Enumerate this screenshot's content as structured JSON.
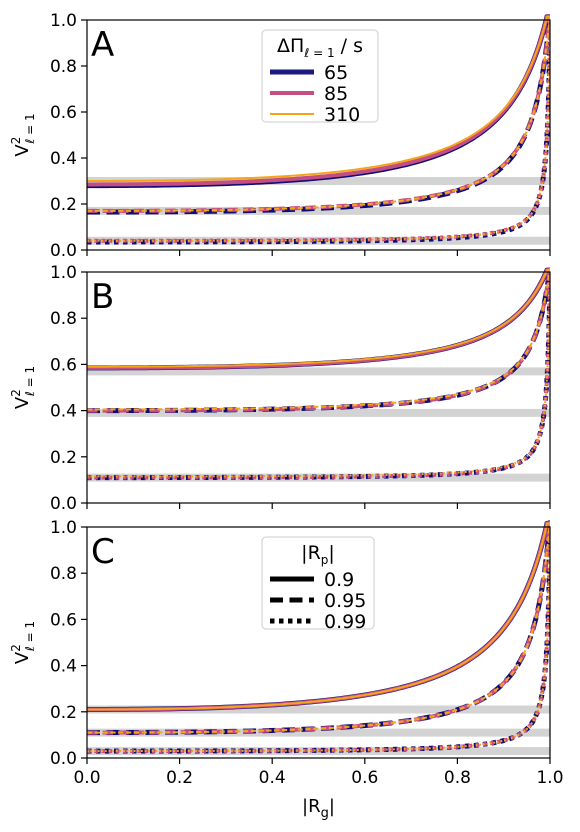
{
  "chart_data": [
    {
      "type": "line",
      "panel_label": "A",
      "ylabel_main": "V",
      "ylabel_sup": "2",
      "ylabel_sub": "ℓ = 1",
      "xlim": [
        0,
        1
      ],
      "ylim": [
        0,
        1
      ],
      "yticks": [
        "0.0",
        "0.2",
        "0.4",
        "0.6",
        "0.8",
        "1.0"
      ],
      "xticks": [
        "0.0",
        "0.2",
        "0.4",
        "0.6",
        "0.8",
        "1.0"
      ],
      "show_xtick_labels": false,
      "grey_bands": [
        0.3,
        0.17,
        0.04
      ],
      "legend": {
        "placement": "top-center",
        "title_main": "ΔΠ",
        "title_sub": "ℓ = 1",
        "title_suffix": " / s",
        "entries": [
          {
            "label": "65",
            "color": "#1a1a80",
            "width": 5
          },
          {
            "label": "85",
            "color": "#c44e80",
            "width": 4
          },
          {
            "label": "310",
            "color": "#f2a21a",
            "width": 2
          }
        ]
      },
      "series": [
        {
          "legend": "65",
          "color": "#0d0d7a",
          "width": 5,
          "dash": "solid",
          "y0": 0.28
        },
        {
          "legend": "65",
          "color": "#0d0d7a",
          "width": 5,
          "dash": "dashed",
          "y0": 0.165
        },
        {
          "legend": "65",
          "color": "#0d0d7a",
          "width": 5,
          "dash": "dotted",
          "y0": 0.035
        },
        {
          "legend": "85",
          "color": "#c44e80",
          "width": 4,
          "dash": "solid",
          "y0": 0.285
        },
        {
          "legend": "85",
          "color": "#c44e80",
          "width": 4,
          "dash": "dashed",
          "y0": 0.17
        },
        {
          "legend": "85",
          "color": "#c44e80",
          "width": 4,
          "dash": "dotted",
          "y0": 0.04
        },
        {
          "legend": "310",
          "color": "#f5a51a",
          "width": 2,
          "dash": "solid",
          "y0": 0.3
        },
        {
          "legend": "310",
          "color": "#f5a51a",
          "width": 2,
          "dash": "dashed",
          "y0": 0.17
        },
        {
          "legend": "310",
          "color": "#f5a51a",
          "width": 2,
          "dash": "dotted",
          "y0": 0.04
        }
      ]
    },
    {
      "type": "line",
      "panel_label": "B",
      "ylabel_main": "V",
      "ylabel_sup": "2",
      "ylabel_sub": "ℓ = 1",
      "xlim": [
        0,
        1
      ],
      "ylim": [
        0,
        1
      ],
      "yticks": [
        "0.0",
        "0.2",
        "0.4",
        "0.6",
        "0.8",
        "1.0"
      ],
      "xticks": [
        "0.0",
        "0.2",
        "0.4",
        "0.6",
        "0.8",
        "1.0"
      ],
      "show_xtick_labels": false,
      "grey_bands": [
        0.57,
        0.39,
        0.11
      ],
      "series": [
        {
          "legend": "65",
          "color": "#0d0d7a",
          "width": 5,
          "dash": "solid",
          "y0": 0.585
        },
        {
          "legend": "65",
          "color": "#0d0d7a",
          "width": 5,
          "dash": "dashed",
          "y0": 0.4
        },
        {
          "legend": "65",
          "color": "#0d0d7a",
          "width": 5,
          "dash": "dotted",
          "y0": 0.11
        },
        {
          "legend": "85",
          "color": "#c44e80",
          "width": 4,
          "dash": "solid",
          "y0": 0.585
        },
        {
          "legend": "85",
          "color": "#c44e80",
          "width": 4,
          "dash": "dashed",
          "y0": 0.4
        },
        {
          "legend": "85",
          "color": "#c44e80",
          "width": 4,
          "dash": "dotted",
          "y0": 0.11
        },
        {
          "legend": "310",
          "color": "#f5a51a",
          "width": 2,
          "dash": "solid",
          "y0": 0.59
        },
        {
          "legend": "310",
          "color": "#f5a51a",
          "width": 2,
          "dash": "dashed",
          "y0": 0.405
        },
        {
          "legend": "310",
          "color": "#f5a51a",
          "width": 2,
          "dash": "dotted",
          "y0": 0.115
        }
      ]
    },
    {
      "type": "line",
      "panel_label": "C",
      "ylabel_main": "V",
      "ylabel_sup": "2",
      "ylabel_sub": "ℓ = 1",
      "xlabel_main": "|R",
      "xlabel_sub": "g",
      "xlabel_suffix": "|",
      "xlim": [
        0,
        1
      ],
      "ylim": [
        0,
        1
      ],
      "yticks": [
        "0.0",
        "0.2",
        "0.4",
        "0.6",
        "0.8",
        "1.0"
      ],
      "xticks": [
        "0.0",
        "0.2",
        "0.4",
        "0.6",
        "0.8",
        "1.0"
      ],
      "show_xtick_labels": true,
      "grey_bands": [
        0.21,
        0.11,
        0.03
      ],
      "legend": {
        "placement": "top-center",
        "title_main": "|R",
        "title_sub": "p",
        "title_suffix": "|",
        "entries": [
          {
            "label": "0.9",
            "color": "#000000",
            "width": 5,
            "dash": "solid"
          },
          {
            "label": "0.95",
            "color": "#000000",
            "width": 5,
            "dash": "dashed"
          },
          {
            "label": "0.99",
            "color": "#000000",
            "width": 5,
            "dash": "dotted"
          }
        ]
      },
      "series": [
        {
          "legend": "65",
          "color": "#0d0d7a",
          "width": 5,
          "dash": "solid",
          "y0": 0.21
        },
        {
          "legend": "65",
          "color": "#0d0d7a",
          "width": 5,
          "dash": "dashed",
          "y0": 0.11
        },
        {
          "legend": "65",
          "color": "#0d0d7a",
          "width": 5,
          "dash": "dotted",
          "y0": 0.03
        },
        {
          "legend": "85",
          "color": "#c44e80",
          "width": 4,
          "dash": "solid",
          "y0": 0.21
        },
        {
          "legend": "85",
          "color": "#c44e80",
          "width": 4,
          "dash": "dashed",
          "y0": 0.11
        },
        {
          "legend": "85",
          "color": "#c44e80",
          "width": 4,
          "dash": "dotted",
          "y0": 0.03
        },
        {
          "legend": "310",
          "color": "#f5a51a",
          "width": 2,
          "dash": "solid",
          "y0": 0.21
        },
        {
          "legend": "310",
          "color": "#f5a51a",
          "width": 2,
          "dash": "dashed",
          "y0": 0.11
        },
        {
          "legend": "310",
          "color": "#f5a51a",
          "width": 2,
          "dash": "dotted",
          "y0": 0.03
        }
      ]
    }
  ]
}
